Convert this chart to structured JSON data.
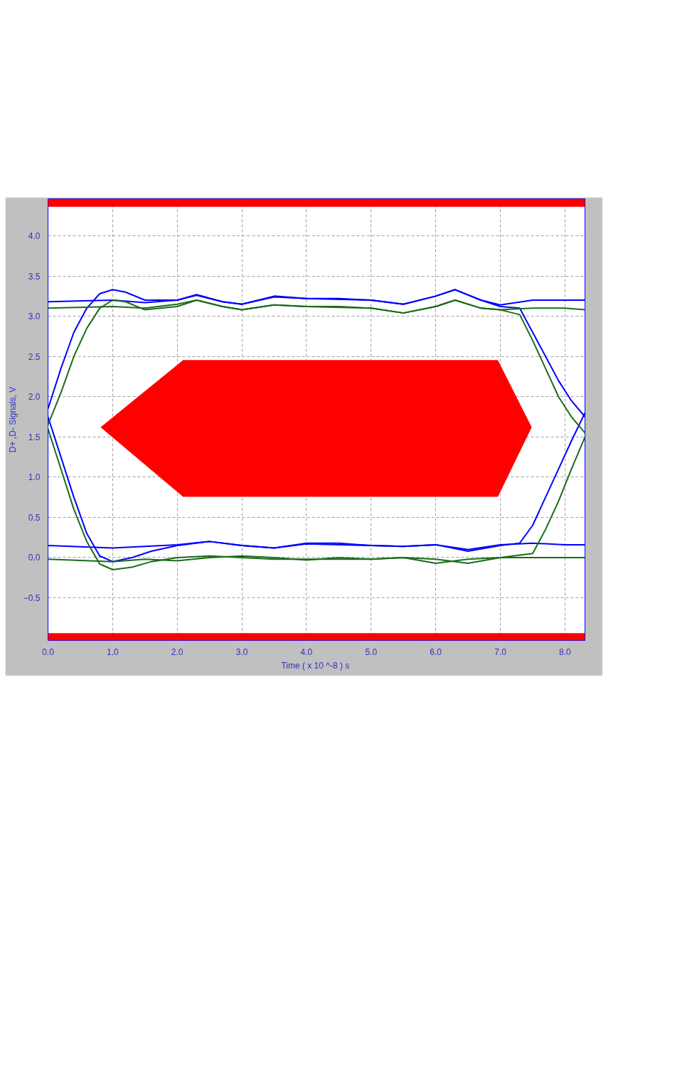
{
  "chart_data": {
    "type": "line",
    "xlabel": "Time  ( x 10 ^-8 ) s",
    "ylabel": "D+ ,D- Signals, V",
    "xlim": [
      0,
      8.31
    ],
    "ylim": [
      -1.03,
      4.46
    ],
    "xticks": [
      {
        "value": 0,
        "label": "0.0"
      },
      {
        "value": 1,
        "label": "1.0"
      },
      {
        "value": 2,
        "label": "2.0"
      },
      {
        "value": 3,
        "label": "3.0"
      },
      {
        "value": 4,
        "label": "4.0"
      },
      {
        "value": 5,
        "label": "5.0"
      },
      {
        "value": 6,
        "label": "6.0"
      },
      {
        "value": 7,
        "label": "7.0"
      },
      {
        "value": 8,
        "label": "8.0"
      }
    ],
    "yticks": [
      -0.5,
      {
        "value": 0,
        "label": "0.0"
      },
      0.5,
      {
        "value": 1,
        "label": "1.0"
      },
      1.5,
      {
        "value": 2,
        "label": "2.0"
      },
      2.5,
      {
        "value": 3,
        "label": "3.0"
      },
      3.5,
      {
        "value": 4,
        "label": "4.0"
      }
    ],
    "grid": true,
    "bands": [
      {
        "axis": "y",
        "from": 4.36,
        "to": 4.46,
        "color": "#ff0000"
      },
      {
        "axis": "y",
        "from": -1.03,
        "to": -0.94,
        "color": "#ff0000"
      }
    ],
    "series": [
      {
        "type": "area",
        "color": "#ff0000",
        "x": [
          0.82,
          2.09,
          6.96,
          7.48,
          6.96,
          2.09,
          0.82
        ],
        "values": [
          1.62,
          2.45,
          2.45,
          1.62,
          0.76,
          0.76,
          1.62
        ]
      },
      {
        "color": "#0000ff",
        "x": [
          0,
          1.0,
          1.5,
          2.0,
          2.3,
          2.7,
          3.0,
          3.5,
          4.0,
          4.5,
          5.0,
          5.5,
          6.0,
          6.3,
          6.7,
          7.0,
          7.5,
          8.0,
          8.31
        ],
        "values": [
          3.18,
          3.2,
          3.17,
          3.2,
          3.26,
          3.18,
          3.15,
          3.24,
          3.22,
          3.22,
          3.2,
          3.15,
          3.25,
          3.33,
          3.2,
          3.14,
          3.2,
          3.2,
          3.2
        ]
      },
      {
        "color": "#0000ff",
        "x": [
          0,
          1.0,
          1.5,
          2.0,
          2.5,
          3.0,
          3.5,
          4.0,
          4.5,
          5.0,
          5.5,
          6.0,
          6.5,
          7.0,
          7.5,
          8.0,
          8.31
        ],
        "values": [
          0.15,
          0.12,
          0.14,
          0.16,
          0.2,
          0.15,
          0.12,
          0.18,
          0.18,
          0.15,
          0.14,
          0.16,
          0.1,
          0.16,
          0.18,
          0.16,
          0.16
        ]
      },
      {
        "color": "#0000ff",
        "x": [
          0,
          0.2,
          0.4,
          0.6,
          0.8,
          1.0,
          1.2,
          1.5,
          2.0,
          2.3,
          2.7,
          3.0,
          3.5,
          4.0,
          5.0,
          5.5,
          6.0,
          6.3,
          6.7,
          7.0,
          7.3,
          7.5,
          7.7,
          7.9,
          8.1,
          8.31
        ],
        "values": [
          1.85,
          2.35,
          2.8,
          3.1,
          3.28,
          3.33,
          3.3,
          3.2,
          3.2,
          3.27,
          3.18,
          3.15,
          3.25,
          3.22,
          3.2,
          3.15,
          3.25,
          3.33,
          3.2,
          3.12,
          3.1,
          2.8,
          2.5,
          2.2,
          1.95,
          1.75
        ]
      },
      {
        "color": "#0000ff",
        "x": [
          0,
          0.2,
          0.4,
          0.6,
          0.8,
          1.0,
          1.3,
          1.6,
          2.0,
          2.5,
          3.0,
          3.5,
          4.0,
          5.0,
          5.5,
          6.0,
          6.5,
          7.0,
          7.3,
          7.5,
          7.7,
          7.9,
          8.1,
          8.31
        ],
        "values": [
          1.75,
          1.25,
          0.75,
          0.3,
          0.02,
          -0.05,
          0.0,
          0.08,
          0.15,
          0.2,
          0.15,
          0.12,
          0.17,
          0.15,
          0.14,
          0.16,
          0.08,
          0.15,
          0.18,
          0.4,
          0.75,
          1.1,
          1.45,
          1.8
        ]
      },
      {
        "color": "#1a6b1a",
        "x": [
          0,
          1.0,
          1.5,
          2.0,
          2.3,
          2.7,
          3.0,
          3.5,
          4.0,
          4.5,
          5.0,
          5.5,
          6.0,
          6.3,
          6.7,
          7.0,
          7.5,
          8.0,
          8.31
        ],
        "values": [
          3.1,
          3.12,
          3.1,
          3.15,
          3.2,
          3.12,
          3.08,
          3.14,
          3.12,
          3.12,
          3.1,
          3.04,
          3.12,
          3.2,
          3.1,
          3.08,
          3.1,
          3.1,
          3.08
        ]
      },
      {
        "color": "#1a6b1a",
        "x": [
          0,
          1.0,
          1.5,
          2.0,
          2.5,
          3.0,
          3.5,
          4.0,
          4.5,
          5.0,
          5.5,
          6.0,
          6.5,
          7.0,
          7.5,
          8.0,
          8.31
        ],
        "values": [
          -0.02,
          -0.05,
          -0.02,
          -0.04,
          0.0,
          0.02,
          0.0,
          -0.03,
          0.0,
          -0.02,
          0.0,
          -0.02,
          -0.07,
          0.0,
          0.0,
          0.0,
          0.0
        ]
      },
      {
        "color": "#1a6b1a",
        "x": [
          0,
          0.2,
          0.4,
          0.6,
          0.8,
          1.0,
          1.2,
          1.5,
          2.0,
          2.3,
          2.7,
          3.0,
          3.5,
          4.0,
          5.0,
          5.5,
          6.0,
          6.3,
          6.7,
          7.0,
          7.3,
          7.5,
          7.7,
          7.9,
          8.1,
          8.31
        ],
        "values": [
          1.65,
          2.05,
          2.5,
          2.85,
          3.1,
          3.2,
          3.18,
          3.08,
          3.12,
          3.2,
          3.12,
          3.08,
          3.14,
          3.12,
          3.1,
          3.04,
          3.12,
          3.2,
          3.1,
          3.08,
          3.02,
          2.7,
          2.35,
          2.0,
          1.75,
          1.55
        ]
      },
      {
        "color": "#1a6b1a",
        "x": [
          0,
          0.2,
          0.4,
          0.6,
          0.8,
          1.0,
          1.3,
          1.6,
          2.0,
          2.5,
          3.0,
          3.5,
          4.0,
          5.0,
          5.5,
          6.0,
          6.5,
          7.0,
          7.5,
          7.7,
          7.9,
          8.1,
          8.31
        ],
        "values": [
          1.6,
          1.1,
          0.6,
          0.2,
          -0.08,
          -0.15,
          -0.12,
          -0.05,
          0.0,
          0.02,
          0.0,
          -0.02,
          -0.02,
          -0.02,
          0.0,
          -0.07,
          -0.02,
          0.0,
          0.05,
          0.35,
          0.7,
          1.1,
          1.5
        ]
      }
    ]
  }
}
